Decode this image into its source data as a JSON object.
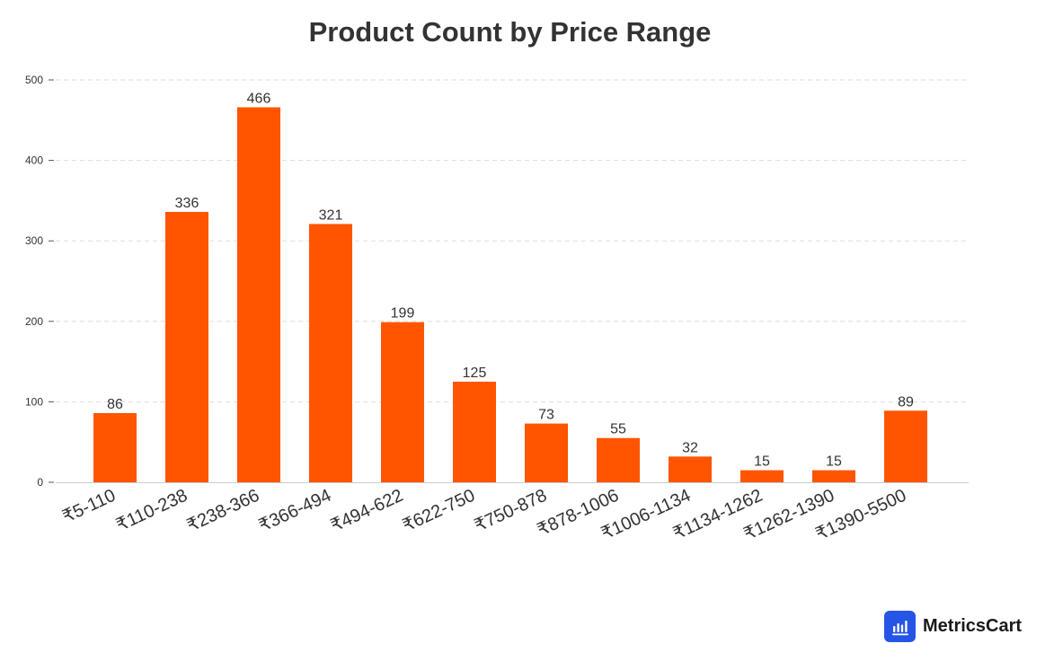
{
  "chart_data": {
    "type": "bar",
    "title": "Product Count by Price Range",
    "xlabel": "",
    "ylabel": "",
    "categories": [
      "₹5-110",
      "₹110-238",
      "₹238-366",
      "₹366-494",
      "₹494-622",
      "₹622-750",
      "₹750-878",
      "₹878-1006",
      "₹1006-1134",
      "₹1134-1262",
      "₹1262-1390",
      "₹1390-5500"
    ],
    "values": [
      86,
      336,
      466,
      321,
      199,
      125,
      73,
      55,
      32,
      15,
      15,
      89
    ],
    "ylim": [
      0,
      500
    ],
    "yticks": [
      0,
      100,
      200,
      300,
      400,
      500
    ],
    "grid": true,
    "bar_color": "#ff5500"
  },
  "brand": {
    "name": "MetricsCart",
    "icon": "bar-chart-icon",
    "color": "#2555e6"
  }
}
